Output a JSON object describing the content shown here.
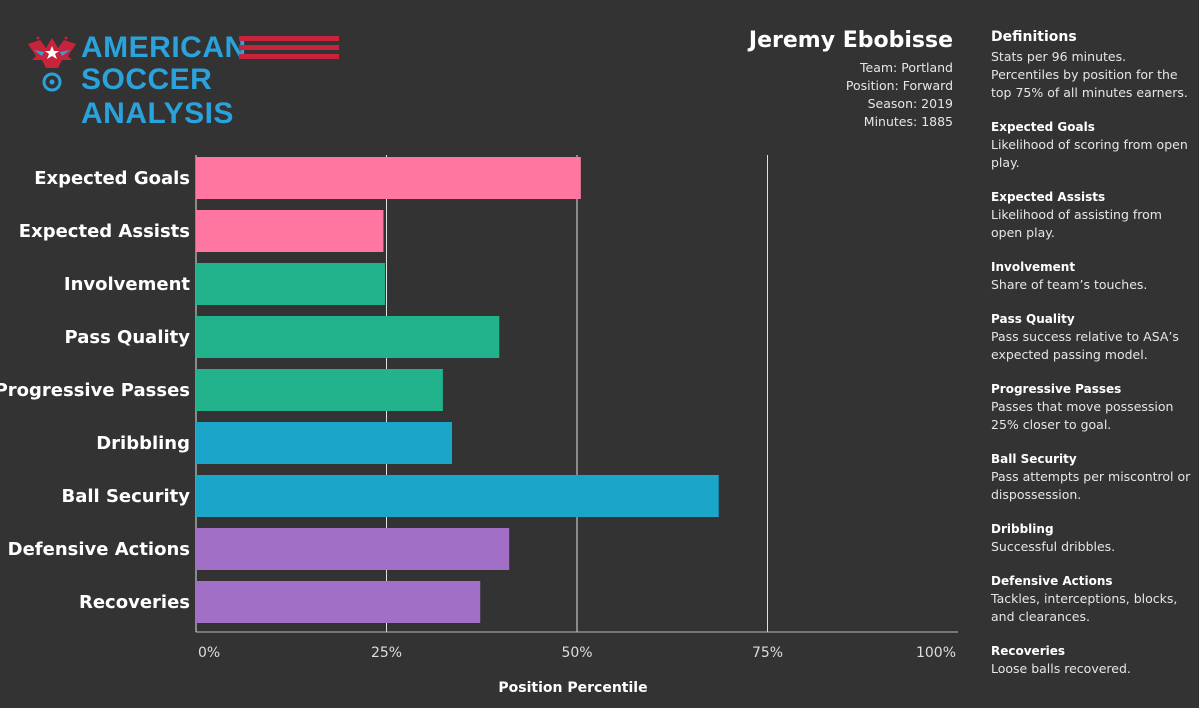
{
  "logo": {
    "line1": "AMERICAN",
    "line2": "SOCCER ANALYSIS",
    "primary_color": "#2aa3dd",
    "accent_color": "#c8233b",
    "icon": "eagle-soccer-ball-icon"
  },
  "player": {
    "name": "Jeremy Ebobisse",
    "team": "Team: Portland",
    "position": "Position: Forward",
    "season": "Season: 2019",
    "minutes": "Minutes: 1885"
  },
  "definitions": {
    "title": "Definitions",
    "intro": "Stats  per 96 minutes. Percentiles by position for the top 75% of all minutes earners.",
    "items": [
      {
        "name": "Expected Goals",
        "text": "Likelihood of scoring from open play."
      },
      {
        "name": "Expected Assists",
        "text": "Likelihood of assisting from open play."
      },
      {
        "name": "Involvement",
        "text": "Share of team’s touches."
      },
      {
        "name": "Pass Quality",
        "text": "Pass success relative to ASA’s expected passing model."
      },
      {
        "name": "Progressive Passes",
        "text": "Passes that move possession 25% closer to goal."
      },
      {
        "name": "Ball Security",
        "text": "Pass attempts per miscontrol or dispossession."
      },
      {
        "name": "Dribbling",
        "text": "Successful dribbles."
      },
      {
        "name": "Defensive Actions",
        "text": "Tackles, interceptions, blocks, and clearances."
      },
      {
        "name": "Recoveries",
        "text": "Loose balls recovered."
      }
    ]
  },
  "chart_data": {
    "type": "bar",
    "orientation": "horizontal",
    "title": "",
    "xlabel": "Position Percentile",
    "ylabel": "",
    "xlim": [
      0,
      100
    ],
    "x_ticks": [
      "0%",
      "25%",
      "50%",
      "75%",
      "100%"
    ],
    "gridlines_at": [
      25,
      50,
      75
    ],
    "categories": [
      "Expected Goals",
      "Expected Assists",
      "Involvement",
      "Pass Quality",
      "Progressive Passes",
      "Dribbling",
      "Ball Security",
      "Defensive Actions",
      "Recoveries"
    ],
    "values": [
      50.5,
      24.6,
      24.8,
      39.8,
      32.4,
      33.6,
      68.6,
      41.1,
      37.3
    ],
    "colors": [
      "#ff77a0",
      "#ff77a0",
      "#22b38c",
      "#22b38c",
      "#22b38c",
      "#1aa5c9",
      "#1aa5c9",
      "#a26fc6",
      "#a26fc6"
    ]
  }
}
